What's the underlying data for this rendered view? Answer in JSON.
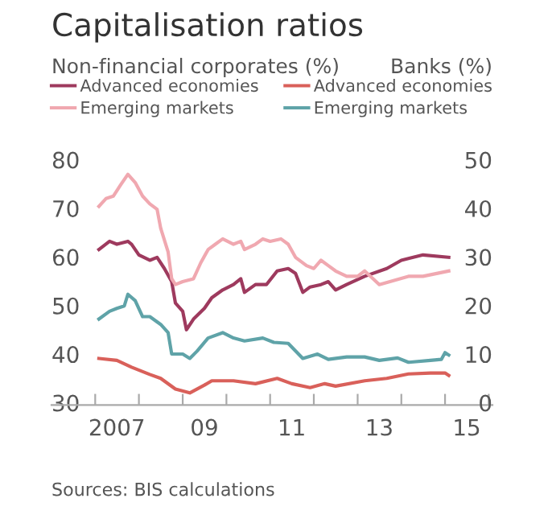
{
  "chart_data": {
    "type": "line",
    "title": "Capitalisation ratios",
    "ylabel": "Non-financial corporates (%)",
    "y2label": "Banks (%)",
    "xlim": [
      "2006-01-01",
      "2016-02-01"
    ],
    "xticks": [
      {
        "value": "2007-01-01",
        "label": null
      },
      {
        "value": "2007-07-01",
        "label": "2007"
      },
      {
        "value": "2008-01-01",
        "label": null
      },
      {
        "value": "2009-01-01",
        "label": null
      },
      {
        "value": "2009-07-01",
        "label": "09"
      },
      {
        "value": "2010-01-01",
        "label": null
      },
      {
        "value": "2011-01-01",
        "label": null
      },
      {
        "value": "2011-07-01",
        "label": "11"
      },
      {
        "value": "2012-01-01",
        "label": null
      },
      {
        "value": "2013-01-01",
        "label": null
      },
      {
        "value": "2013-07-01",
        "label": "13"
      },
      {
        "value": "2014-01-01",
        "label": null
      },
      {
        "value": "2015-01-01",
        "label": null
      },
      {
        "value": "2015-07-01",
        "label": "15"
      },
      {
        "value": "2016-01-01",
        "label": null
      }
    ],
    "ylim": [
      30,
      80
    ],
    "yticks": [
      30,
      40,
      50,
      60,
      70,
      80
    ],
    "y2lim": [
      0,
      50
    ],
    "y2ticks": [
      0,
      10,
      20,
      30,
      40,
      50
    ],
    "grid": false,
    "legend": "top",
    "line_style": "solid",
    "marker": "none",
    "annotations": [
      "Sources: BIS calculations"
    ],
    "series": [
      {
        "name": "Advanced economies",
        "axis": "y",
        "color": "#9e3a5e",
        "x": [
          "2007-02",
          "2007-05",
          "2007-07",
          "2007-10",
          "2007-11",
          "2008-01",
          "2008-04",
          "2008-06",
          "2008-08",
          "2008-10",
          "2008-11",
          "2009-01",
          "2009-02",
          "2009-04",
          "2009-07",
          "2009-09",
          "2009-12",
          "2010-03",
          "2010-05",
          "2010-06",
          "2010-09",
          "2010-12",
          "2011-03",
          "2011-06",
          "2011-08",
          "2011-10",
          "2011-12",
          "2012-03",
          "2012-05",
          "2012-07",
          "2012-10",
          "2013-03",
          "2013-09",
          "2014-01",
          "2014-07",
          "2015-02"
        ],
        "values": [
          62.0,
          63.7,
          63.1,
          63.7,
          63.1,
          60.9,
          59.8,
          60.4,
          58.1,
          55.4,
          51.0,
          49.3,
          45.5,
          47.7,
          49.9,
          52.1,
          53.7,
          54.8,
          56.0,
          53.2,
          54.8,
          54.8,
          57.6,
          58.1,
          57.1,
          53.2,
          54.3,
          54.8,
          55.4,
          53.7,
          54.8,
          56.5,
          58.1,
          59.8,
          60.9,
          60.4
        ]
      },
      {
        "name": "Emerging markets",
        "axis": "y",
        "color": "#f0a8b0",
        "x": [
          "2007-02",
          "2007-04",
          "2007-06",
          "2007-08",
          "2007-10",
          "2007-12",
          "2008-02",
          "2008-04",
          "2008-06",
          "2008-07",
          "2008-09",
          "2008-10",
          "2008-11",
          "2009-01",
          "2009-04",
          "2009-06",
          "2009-08",
          "2009-10",
          "2009-12",
          "2010-03",
          "2010-05",
          "2010-06",
          "2010-09",
          "2010-11",
          "2011-01",
          "2011-04",
          "2011-06",
          "2011-08",
          "2011-11",
          "2012-01",
          "2012-03",
          "2012-05",
          "2012-07",
          "2012-10",
          "2013-01",
          "2013-03",
          "2013-07",
          "2014-03",
          "2014-07",
          "2015-02"
        ],
        "values": [
          70.9,
          72.5,
          73.0,
          75.3,
          77.5,
          75.8,
          73.0,
          71.4,
          70.3,
          66.4,
          61.5,
          56.0,
          54.8,
          55.4,
          56.0,
          59.3,
          62.0,
          63.1,
          64.2,
          63.1,
          63.7,
          62.0,
          63.1,
          64.2,
          63.7,
          64.2,
          63.1,
          60.4,
          58.7,
          58.1,
          59.8,
          58.7,
          57.6,
          56.5,
          56.5,
          57.6,
          54.8,
          56.5,
          56.5,
          57.6
        ]
      },
      {
        "name": "Advanced economies",
        "axis": "y2",
        "color": "#d9605a",
        "x": [
          "2007-02",
          "2007-07",
          "2007-11",
          "2008-04",
          "2008-07",
          "2008-11",
          "2009-03",
          "2009-07",
          "2009-09",
          "2010-03",
          "2010-09",
          "2011-03",
          "2011-07",
          "2011-12",
          "2012-04",
          "2012-07",
          "2013-03",
          "2013-09",
          "2014-03",
          "2014-09",
          "2015-01",
          "2015-02"
        ],
        "values": [
          9.6,
          9.2,
          7.8,
          6.3,
          5.5,
          3.3,
          2.5,
          4.1,
          5.0,
          5.0,
          4.4,
          5.5,
          4.4,
          3.6,
          4.4,
          3.9,
          5.0,
          5.5,
          6.4,
          6.6,
          6.6,
          6.1
        ]
      },
      {
        "name": "Emerging markets",
        "axis": "y2",
        "color": "#5fa3a8",
        "x": [
          "2007-02",
          "2007-05",
          "2007-07",
          "2007-09",
          "2007-10",
          "2007-12",
          "2008-02",
          "2008-04",
          "2008-07",
          "2008-09",
          "2008-10",
          "2009-01",
          "2009-03",
          "2009-05",
          "2009-08",
          "2009-12",
          "2010-03",
          "2010-06",
          "2010-11",
          "2011-02",
          "2011-06",
          "2011-10",
          "2012-02",
          "2012-05",
          "2012-10",
          "2013-03",
          "2013-07",
          "2013-12",
          "2014-03",
          "2014-09",
          "2014-12",
          "2015-01",
          "2015-02"
        ],
        "values": [
          17.7,
          19.3,
          19.9,
          20.4,
          22.8,
          21.5,
          18.2,
          18.2,
          16.6,
          14.9,
          10.5,
          10.5,
          9.6,
          11.1,
          13.8,
          14.9,
          13.8,
          13.2,
          13.8,
          12.9,
          12.7,
          9.6,
          10.5,
          9.4,
          9.9,
          9.9,
          9.2,
          9.7,
          8.8,
          9.2,
          9.4,
          10.8,
          10.3
        ]
      }
    ]
  }
}
